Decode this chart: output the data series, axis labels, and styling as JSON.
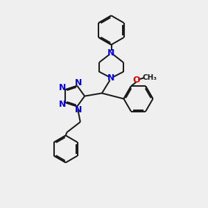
{
  "bg_color": "#efefef",
  "bond_color": "#1a1a1a",
  "N_color": "#0000ee",
  "O_color": "#dd0000",
  "lw": 1.5,
  "xlim": [
    0,
    10
  ],
  "ylim": [
    0,
    10
  ]
}
